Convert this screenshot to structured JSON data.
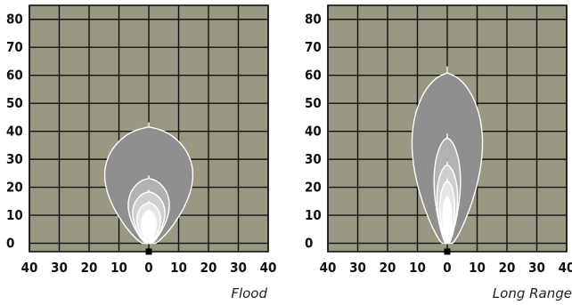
{
  "colors": {
    "background": "#ffffff",
    "plot_fill": "#9a9882",
    "grid": "#111111",
    "beam_fill": "#8f8f8f",
    "contour": "#ffffff",
    "origin_marker": "#000000"
  },
  "chart_data": [
    {
      "type": "contour",
      "caption": "Flood",
      "x_ticks": [
        "40",
        "30",
        "20",
        "10",
        "0",
        "10",
        "20",
        "30",
        "40"
      ],
      "y_ticks": [
        "0",
        "10",
        "20",
        "30",
        "40",
        "50",
        "60",
        "70",
        "80"
      ],
      "xlim": [
        -40,
        40
      ],
      "ylim": [
        -3,
        85
      ],
      "grid": true,
      "contour_levels": [
        {
          "level": 1,
          "half_width": 15,
          "reach": 43
        },
        {
          "level": 2,
          "half_width": 7,
          "reach": 24
        },
        {
          "level": 3,
          "half_width": 5.5,
          "reach": 19
        },
        {
          "level": 4,
          "half_width": 4,
          "reach": 15
        },
        {
          "level": 5,
          "half_width": 2.5,
          "reach": 12
        }
      ]
    },
    {
      "type": "contour",
      "caption": "Long Range",
      "x_ticks": [
        "40",
        "30",
        "20",
        "10",
        "0",
        "10",
        "20",
        "30",
        "40"
      ],
      "y_ticks": [
        "0",
        "10",
        "20",
        "30",
        "40",
        "50",
        "60",
        "70",
        "80"
      ],
      "xlim": [
        -40,
        40
      ],
      "ylim": [
        -3,
        85
      ],
      "grid": true,
      "contour_levels": [
        {
          "level": 1,
          "half_width": 12,
          "reach": 63
        },
        {
          "level": 2,
          "half_width": 4.5,
          "reach": 39
        },
        {
          "level": 3,
          "half_width": 3.5,
          "reach": 29
        },
        {
          "level": 4,
          "half_width": 2.5,
          "reach": 23
        },
        {
          "level": 5,
          "half_width": 1.5,
          "reach": 17
        }
      ]
    }
  ]
}
